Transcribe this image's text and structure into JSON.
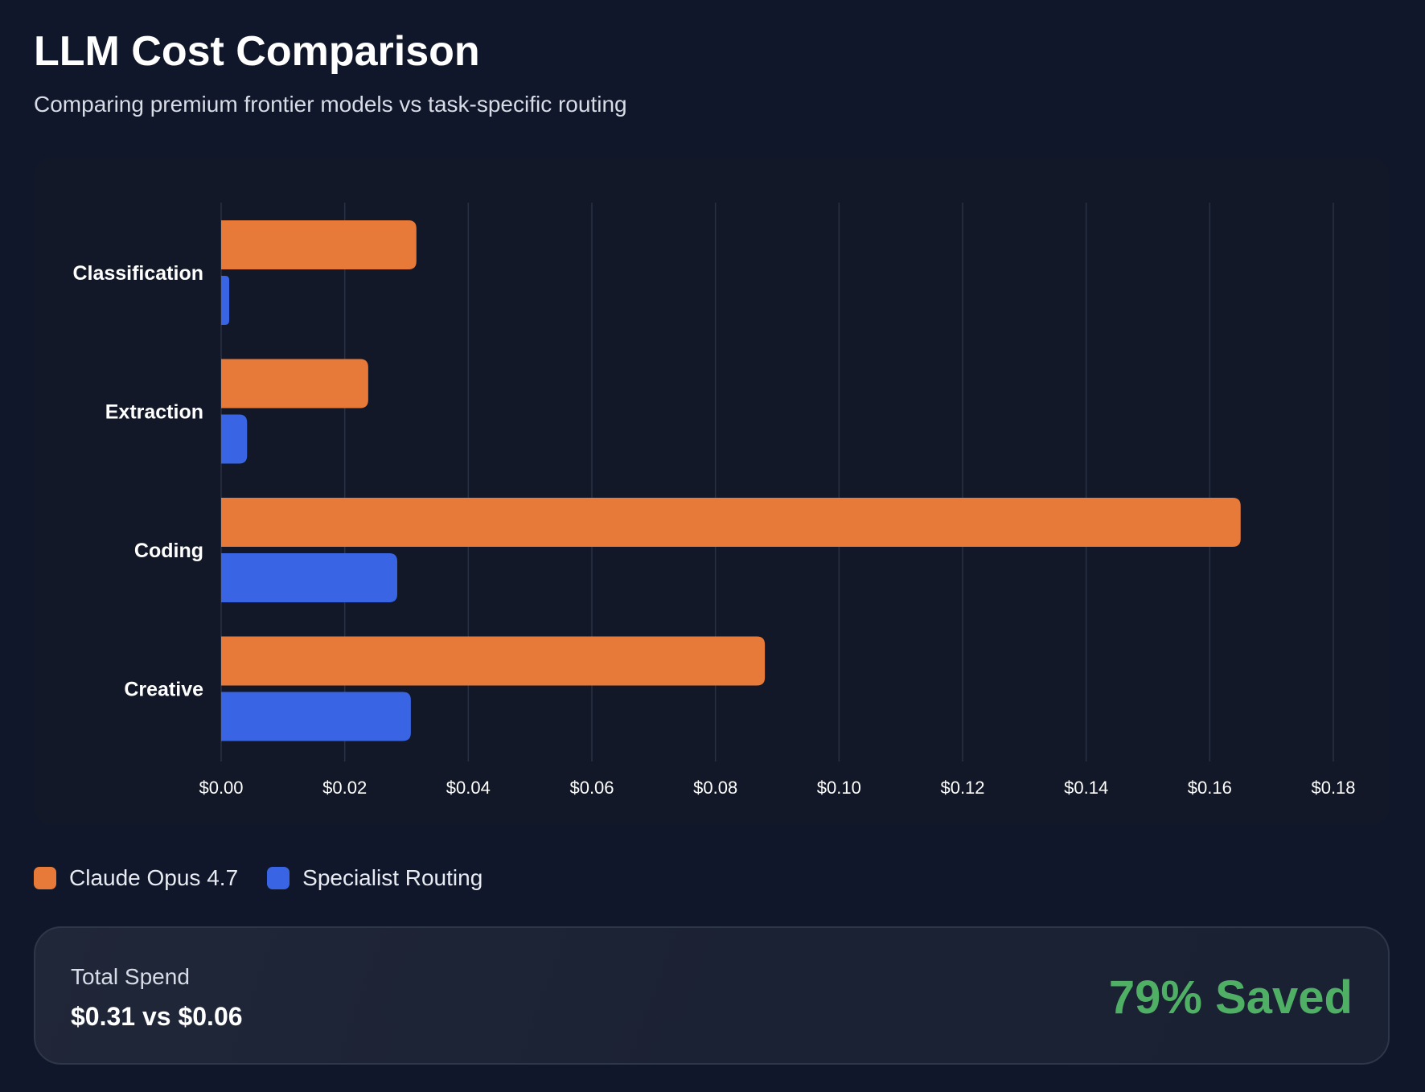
{
  "header": {
    "title": "LLM Cost Comparison",
    "subtitle": "Comparing premium frontier models vs task-specific routing"
  },
  "chart_data": {
    "type": "bar",
    "orientation": "horizontal",
    "title": "",
    "xlabel": "",
    "ylabel": "",
    "categories": [
      "Classification",
      "Extraction",
      "Coding",
      "Creative"
    ],
    "series": [
      {
        "name": "Claude Opus 4.7",
        "color": "#e87a39",
        "values": [
          0.0316,
          0.0238,
          0.165,
          0.088
        ]
      },
      {
        "name": "Specialist Routing",
        "color": "#3965e5",
        "values": [
          0.0013,
          0.0042,
          0.0285,
          0.0307
        ]
      }
    ],
    "xlim": [
      0,
      0.18
    ],
    "xticks": [
      "$0.00",
      "$0.02",
      "$0.04",
      "$0.06",
      "$0.08",
      "$0.10",
      "$0.12",
      "$0.14",
      "$0.16",
      "$0.18"
    ],
    "grid": "vertical",
    "legend_position": "bottom-left"
  },
  "legend": {
    "items": [
      {
        "label": "Claude Opus 4.7",
        "color": "#e87a39"
      },
      {
        "label": "Specialist Routing",
        "color": "#3965e5"
      }
    ]
  },
  "summary": {
    "label": "Total Spend",
    "value": "$0.31 vs $0.06",
    "savings": "79% Saved",
    "savings_color": "#4faf65"
  }
}
